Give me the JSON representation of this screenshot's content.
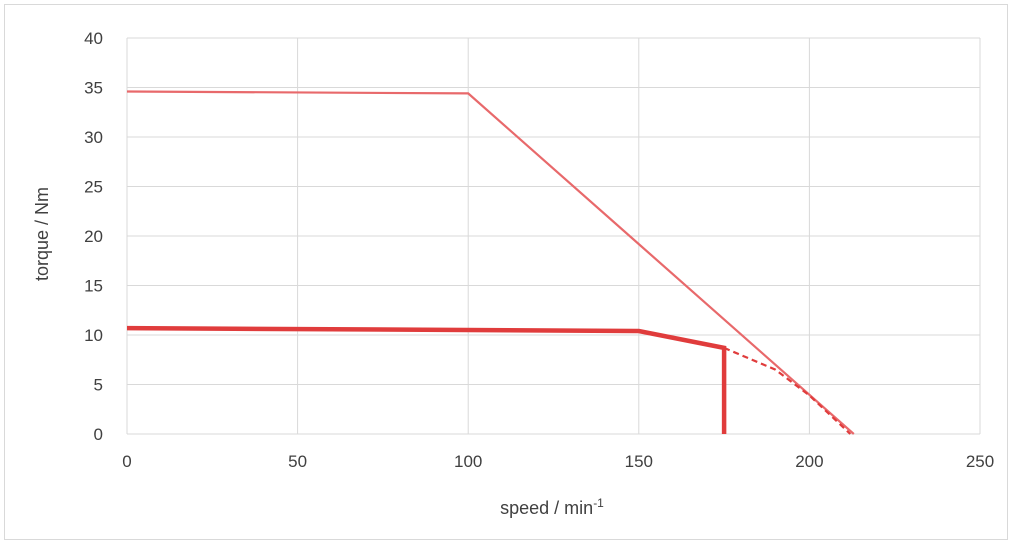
{
  "chart_data": {
    "type": "line",
    "title": "",
    "xlabel": "speed / min",
    "xlabel_superscript": "-1",
    "ylabel": "torque / Nm",
    "xlim": [
      0,
      250
    ],
    "ylim": [
      0,
      40
    ],
    "x_ticks": [
      0,
      50,
      100,
      150,
      200,
      250
    ],
    "y_ticks": [
      0,
      5,
      10,
      15,
      20,
      25,
      30,
      35,
      40
    ],
    "grid": true,
    "legend": "none",
    "series": [
      {
        "color": "#e8696b",
        "line_style": "solid",
        "line_weight": "thin",
        "points": [
          [
            0,
            34.6
          ],
          [
            100,
            34.4
          ],
          [
            213,
            0
          ]
        ]
      },
      {
        "color": "#e03c3c",
        "line_style": "solid",
        "line_weight": "thick",
        "points": [
          [
            0,
            10.7
          ],
          [
            150,
            10.4
          ],
          [
            175,
            8.7
          ],
          [
            175,
            0
          ]
        ]
      },
      {
        "color": "#e03c3c",
        "line_style": "dashed",
        "line_weight": "thin",
        "points": [
          [
            175,
            8.7
          ],
          [
            190,
            6.5
          ],
          [
            200,
            3.9
          ],
          [
            212,
            0
          ]
        ]
      }
    ]
  }
}
